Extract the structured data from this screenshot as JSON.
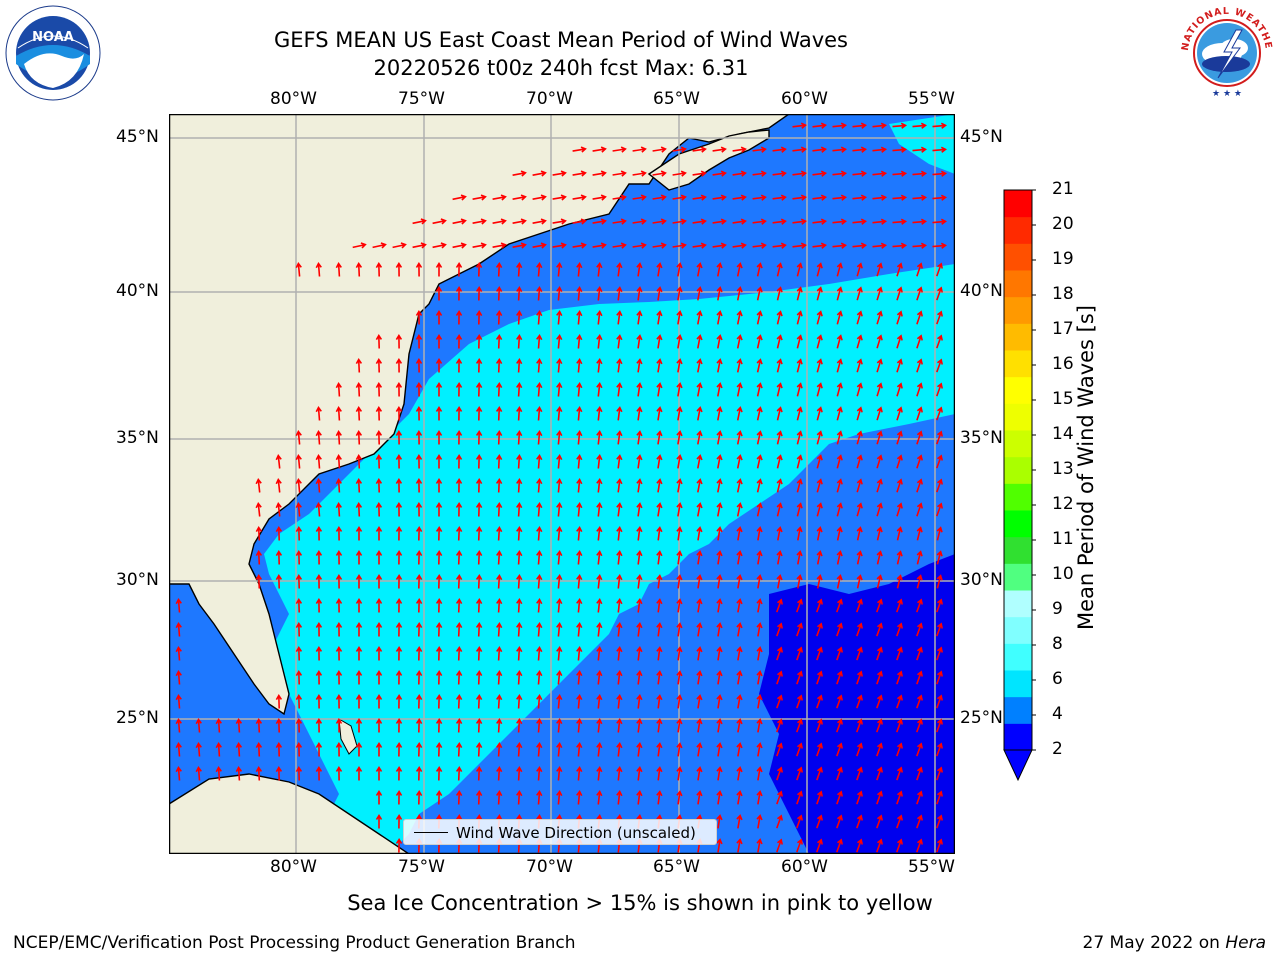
{
  "title": {
    "line1": "GEFS MEAN US East Coast Mean Period of Wind Waves",
    "line2": "20220526 t00z 240h fcst   Max: 6.31"
  },
  "logos": {
    "noaa_text": "NOAA",
    "noaa_ring": "NATIONAL OCEANIC AND ATMOSPHERIC ADMINISTRATION · U.S. DEPARTMENT OF COMMERCE",
    "nws_ring": "NATIONAL WEATHER SERVICE"
  },
  "map": {
    "lon_labels": [
      "80°W",
      "75°W",
      "70°W",
      "65°W",
      "60°W",
      "55°W"
    ],
    "lat_labels": [
      "45°N",
      "40°N",
      "35°N",
      "30°N",
      "25°N"
    ],
    "legend_label": "Wind Wave Direction (unscaled)"
  },
  "colorbar": {
    "label": "Mean Period of Wind Waves [s]",
    "ticks": [
      "2",
      "4",
      "6",
      "8",
      "9",
      "10",
      "11",
      "12",
      "13",
      "14",
      "15",
      "16",
      "17",
      "18",
      "19",
      "20",
      "21"
    ],
    "colors": [
      "#0000ff",
      "#0080ff",
      "#00e5ff",
      "#40ffff",
      "#80ffff",
      "#b0ffff",
      "#50ff80",
      "#30e030",
      "#00ff00",
      "#50ff00",
      "#aaff00",
      "#ccff00",
      "#eeff00",
      "#ffff00",
      "#ffe000",
      "#ffbb00",
      "#ff9900",
      "#ff7700",
      "#ff5000",
      "#ff2a00",
      "#ff0000"
    ],
    "extend_color": "#0000ff"
  },
  "notes": {
    "sea_ice": "Sea Ice Concentration > 15% is shown in pink to yellow"
  },
  "footer": {
    "left": "NCEP/EMC/Verification Post Processing Product Generation Branch",
    "right_date": "27 May 2022 on ",
    "right_host": "Hera"
  },
  "colors": {
    "land": "#f0efdc",
    "sea_low": "#0000ee",
    "sea_mid": "#1e78ff",
    "sea_high": "#00f0ff",
    "arrow": "#ff0000",
    "grid": "#b0b0b0"
  }
}
